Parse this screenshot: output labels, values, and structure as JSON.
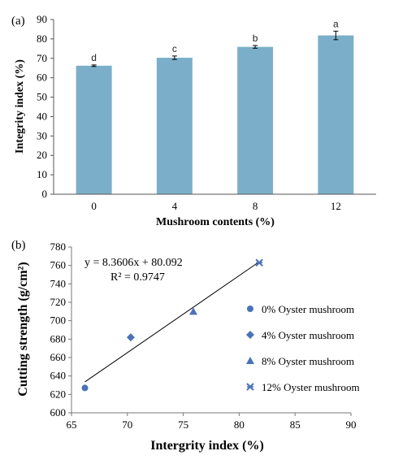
{
  "chart_data": [
    {
      "panel_label": "(a)",
      "type": "bar",
      "categories": [
        "0",
        "4",
        "8",
        "12"
      ],
      "values": [
        66.2,
        70.3,
        75.9,
        81.8
      ],
      "errors": [
        0.4,
        0.9,
        0.7,
        2.2
      ],
      "significance_letters": [
        "d",
        "c",
        "b",
        "a"
      ],
      "xlabel": "Mushroom contents (%)",
      "ylabel": "Integrity index (%)",
      "ylim": [
        0,
        90
      ],
      "yticks": [
        "0",
        "10",
        "20",
        "30",
        "40",
        "50",
        "60",
        "70",
        "80",
        "90"
      ],
      "bar_color": "#7bafc9",
      "grid": false
    },
    {
      "panel_label": "(b)",
      "type": "scatter",
      "points": [
        {
          "x": 66.2,
          "y": 627,
          "series": "0%  Oyster mushroom",
          "marker": "circle"
        },
        {
          "x": 70.3,
          "y": 682,
          "series": "4%  Oyster mushroom",
          "marker": "diamond"
        },
        {
          "x": 75.9,
          "y": 710,
          "series": "8%  Oyster mushroom",
          "marker": "triangle"
        },
        {
          "x": 81.8,
          "y": 763,
          "series": "12% Oyster mushroom",
          "marker": "xstar"
        }
      ],
      "series": [
        {
          "name": "0%  Oyster mushroom",
          "marker": "circle"
        },
        {
          "name": "4%  Oyster mushroom",
          "marker": "diamond"
        },
        {
          "name": "8%  Oyster mushroom",
          "marker": "triangle"
        },
        {
          "name": "12% Oyster mushroom",
          "marker": "xstar"
        }
      ],
      "trendline": {
        "slope": 8.3606,
        "intercept": 80.092,
        "x_range": [
          66.2,
          81.8
        ]
      },
      "equation": "y = 8.3606x + 80.092",
      "r_squared": "R² = 0.9747",
      "xlabel": "Intergrity index (%)",
      "ylabel": "Cutting strength (g/cm²)",
      "xlim": [
        65,
        90
      ],
      "ylim": [
        600,
        780
      ],
      "xticks": [
        "65",
        "70",
        "75",
        "80",
        "85",
        "90"
      ],
      "yticks": [
        "600",
        "620",
        "640",
        "660",
        "680",
        "700",
        "720",
        "740",
        "760",
        "780"
      ],
      "marker_color": "#4a72b8",
      "legend_position": "right",
      "grid": false
    }
  ]
}
